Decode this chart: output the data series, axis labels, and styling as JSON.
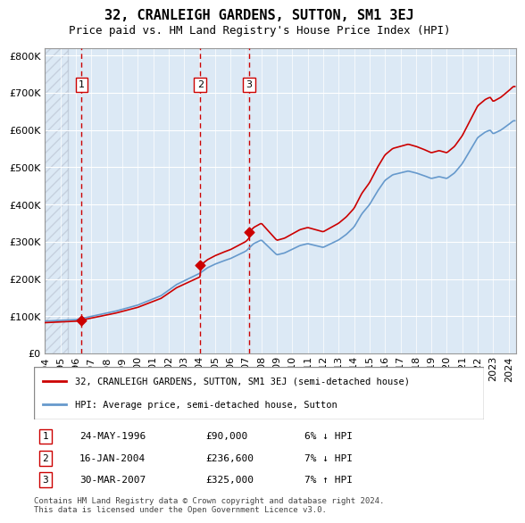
{
  "title": "32, CRANLEIGH GARDENS, SUTTON, SM1 3EJ",
  "subtitle": "Price paid vs. HM Land Registry's House Price Index (HPI)",
  "property_label": "32, CRANLEIGH GARDENS, SUTTON, SM1 3EJ (semi-detached house)",
  "hpi_label": "HPI: Average price, semi-detached house, Sutton",
  "transactions": [
    {
      "num": 1,
      "date": "1996-05-24",
      "price": 90000,
      "rel": "6% ↓ HPI"
    },
    {
      "num": 2,
      "date": "2004-01-16",
      "price": 236600,
      "rel": "7% ↓ HPI"
    },
    {
      "num": 3,
      "date": "2007-03-30",
      "price": 325000,
      "rel": "7% ↑ HPI"
    }
  ],
  "copyright": "Contains HM Land Registry data © Crown copyright and database right 2024.\nThis data is licensed under the Open Government Licence v3.0.",
  "property_color": "#cc0000",
  "hpi_color": "#6699cc",
  "background_color": "#dce9f5",
  "hatch_color": "#b0b8c8",
  "grid_color": "#ffffff",
  "vline_color": "#cc0000",
  "ylim": [
    0,
    820000
  ],
  "yticks": [
    0,
    100000,
    200000,
    300000,
    400000,
    500000,
    600000,
    700000,
    800000
  ],
  "xstart": 1994.0,
  "xend": 2024.5
}
